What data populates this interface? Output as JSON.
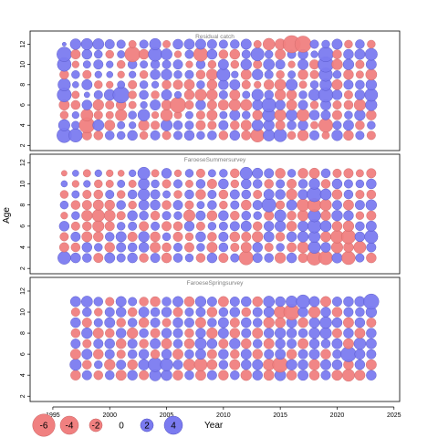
{
  "chart_data": {
    "type": "scatter",
    "subtype": "bubble-residuals",
    "ylabel": "Age",
    "xlabel": "Year",
    "x_ticks": [
      1995,
      2000,
      2005,
      2010,
      2015,
      2020,
      2025
    ],
    "xlim": [
      1993,
      2025.5
    ],
    "colors": {
      "negative": "#F08080",
      "positive": "#7B7BF0",
      "stroke": "#5a5a8a"
    },
    "legend": {
      "values": [
        -6,
        -4,
        -2,
        0,
        2,
        4
      ],
      "labels": [
        "-6",
        "-4",
        "-2",
        "0",
        "2",
        "4"
      ]
    },
    "panels": [
      {
        "title": "Residual catch",
        "y_ticks": [
          2,
          4,
          6,
          8,
          10,
          12
        ],
        "ylim": [
          1.5,
          13.3
        ],
        "years": [
          1996,
          1997,
          1998,
          1999,
          2000,
          2001,
          2002,
          2003,
          2004,
          2005,
          2006,
          2007,
          2008,
          2009,
          2010,
          2011,
          2012,
          2013,
          2014,
          2015,
          2016,
          2017,
          2018,
          2019,
          2020,
          2021,
          2022,
          2023
        ],
        "ages": [
          3,
          4,
          5,
          6,
          7,
          8,
          9,
          10,
          11,
          12
        ],
        "residuals": [
          [
            2.6,
            1.6,
            -0.8,
            -1.3,
            2.4,
            1.9,
            -1.0,
            2.3,
            2.6,
            0.2
          ],
          [
            2.2,
            0.8,
            0.6,
            -1.0,
            -0.7,
            0.5,
            0.8,
            -0.6,
            -1.1,
            1.4
          ],
          [
            -1.1,
            -2.9,
            -1.8,
            1.2,
            0.4,
            1.3,
            -0.9,
            0.7,
            1.2,
            1.6
          ],
          [
            -1.0,
            1.5,
            -0.9,
            -1.4,
            0.9,
            -0.8,
            0.6,
            1.1,
            0.8,
            1.5
          ],
          [
            1.0,
            -1.3,
            -0.7,
            -0.9,
            1.5,
            -0.6,
            0.5,
            0.6,
            -0.8,
            1.1
          ],
          [
            0.8,
            0.7,
            -1.6,
            -1.2,
            3.2,
            0.7,
            -0.6,
            -0.8,
            0.7,
            0.9
          ],
          [
            1.2,
            0.6,
            0.8,
            -0.7,
            -0.8,
            -0.9,
            0.6,
            1.0,
            -2.8,
            -0.7
          ],
          [
            -0.8,
            -1.4,
            1.7,
            0.6,
            1.0,
            0.8,
            -0.8,
            0.7,
            -1.2,
            0.9
          ],
          [
            1.1,
            -0.9,
            -0.6,
            1.3,
            -0.8,
            0.6,
            1.2,
            1.0,
            2.3,
            1.6
          ],
          [
            -0.9,
            1.6,
            -1.7,
            -1.2,
            1.3,
            -1.0,
            1.4,
            0.9,
            1.5,
            -0.7
          ],
          [
            0.9,
            1.0,
            -0.7,
            -2.9,
            0.6,
            -1.1,
            0.8,
            1.1,
            -0.6,
            1.2
          ],
          [
            1.2,
            0.9,
            0.7,
            -0.9,
            -1.2,
            -1.3,
            0.9,
            -0.6,
            0.9,
            1.3
          ],
          [
            0.8,
            -1.1,
            -0.9,
            1.2,
            -1.6,
            0.8,
            -1.0,
            1.0,
            -2.4,
            1.3
          ],
          [
            1.0,
            -0.9,
            -1.3,
            -1.1,
            -1.4,
            -1.2,
            -1.5,
            -0.8,
            1.2,
            1.1
          ],
          [
            -1.0,
            1.1,
            0.7,
            -1.3,
            0.9,
            1.2,
            2.1,
            1.3,
            -1.0,
            0.9
          ],
          [
            1.2,
            -1.0,
            1.3,
            -1.6,
            -1.3,
            1.3,
            0.6,
            -0.8,
            -1.2,
            1.0
          ],
          [
            -1.1,
            -1.3,
            0.8,
            -1.5,
            0.7,
            -0.9,
            -1.3,
            1.4,
            0.9,
            1.3
          ],
          [
            -2.2,
            1.5,
            -1.2,
            1.3,
            1.6,
            -0.6,
            1.4,
            -0.9,
            2.1,
            -0.7
          ],
          [
            1.6,
            1.4,
            2.0,
            2.4,
            1.0,
            -1.2,
            0.9,
            1.5,
            0.8,
            -1.7
          ],
          [
            2.0,
            -1.1,
            -1.6,
            1.2,
            -1.4,
            -1.5,
            -0.8,
            1.1,
            -1.3,
            -1.4
          ],
          [
            -0.8,
            1.0,
            1.5,
            -1.3,
            -1.2,
            1.6,
            0.7,
            -0.6,
            0.9,
            -3.6
          ],
          [
            -1.4,
            1.2,
            -1.8,
            1.1,
            0.8,
            -0.7,
            -1.2,
            1.3,
            1.2,
            -3.2
          ],
          [
            1.1,
            -0.7,
            1.2,
            -0.8,
            1.6,
            0.8,
            -0.9,
            -1.1,
            0.6,
            0.9
          ],
          [
            -0.7,
            -2.4,
            1.1,
            1.3,
            2.6,
            1.7,
            2.2,
            2.9,
            2.7,
            0.8
          ],
          [
            1.4,
            0.9,
            -1.1,
            -0.9,
            1.2,
            -1.3,
            0.8,
            -1.4,
            -1.0,
            1.3
          ],
          [
            -1.2,
            1.3,
            0.8,
            -1.0,
            -0.9,
            1.1,
            -1.2,
            1.4,
            1.2,
            -0.8
          ],
          [
            0.9,
            -1.0,
            1.4,
            -1.6,
            1.2,
            1.0,
            -0.7,
            -0.9,
            1.3,
            1.0
          ],
          [
            -0.9,
            0.8,
            -1.2,
            1.6,
            2.0,
            1.4,
            -1.5,
            1.3,
            1.8,
            -0.8
          ]
        ]
      },
      {
        "title": "FaroeseSummersurvey",
        "y_ticks": [
          2,
          4,
          6,
          8,
          10,
          12
        ],
        "ylim": [
          1.5,
          12.8
        ],
        "years": [
          1996,
          1997,
          1998,
          1999,
          2000,
          2001,
          2002,
          2003,
          2004,
          2005,
          2006,
          2007,
          2008,
          2009,
          2010,
          2011,
          2012,
          2013,
          2014,
          2015,
          2016,
          2017,
          2018,
          2019,
          2020,
          2021,
          2022,
          2023
        ],
        "ages": [
          3,
          4,
          5,
          6,
          7,
          8,
          9,
          10,
          11
        ],
        "residuals": [
          [
            2.0,
            -1.1,
            -0.9,
            1.2,
            -0.6,
            0.8,
            -0.8,
            0.5,
            -0.4
          ],
          [
            1.2,
            -1.0,
            1.1,
            -0.9,
            0.8,
            -1.0,
            0.7,
            -0.6,
            0.5
          ],
          [
            1.0,
            1.2,
            -1.3,
            -1.0,
            -1.4,
            -1.1,
            -0.9,
            0.6,
            -0.7
          ],
          [
            -1.1,
            0.8,
            -1.2,
            -1.6,
            -1.8,
            -1.3,
            -1.0,
            -0.8,
            0.6
          ],
          [
            1.3,
            -1.2,
            1.0,
            -1.1,
            -1.5,
            -1.2,
            0.9,
            -0.7,
            -0.6
          ],
          [
            0.9,
            1.1,
            1.3,
            0.8,
            -0.9,
            1.0,
            -0.8,
            0.7,
            -0.5
          ],
          [
            1.2,
            1.0,
            -1.1,
            0.9,
            1.2,
            -0.8,
            1.0,
            -0.7,
            0.6
          ],
          [
            -1.0,
            1.2,
            1.4,
            -1.1,
            1.0,
            1.3,
            1.6,
            1.5,
            1.8
          ],
          [
            1.1,
            -1.3,
            -1.2,
            0.9,
            -1.0,
            1.2,
            1.1,
            0.8,
            -0.7
          ],
          [
            -1.2,
            -1.0,
            0.8,
            -1.1,
            0.9,
            -1.0,
            0.7,
            -0.9,
            1.2
          ],
          [
            1.0,
            0.9,
            -1.1,
            -1.0,
            0.8,
            1.1,
            -0.8,
            0.9,
            -0.6
          ],
          [
            0.8,
            -1.1,
            -0.8,
            1.2,
            -1.6,
            -0.9,
            1.0,
            -0.7,
            0.8
          ],
          [
            -1.0,
            0.8,
            1.2,
            -0.9,
            1.1,
            0.7,
            -1.2,
            1.0,
            -0.9
          ],
          [
            1.2,
            -1.3,
            -1.0,
            0.8,
            -1.2,
            1.0,
            0.9,
            -1.1,
            0.7
          ],
          [
            -1.1,
            1.0,
            1.1,
            0.9,
            1.2,
            -0.8,
            -1.0,
            1.2,
            0.8
          ],
          [
            0.9,
            -0.9,
            -1.2,
            1.1,
            -1.0,
            0.9,
            1.1,
            -0.8,
            -1.0
          ],
          [
            -2.4,
            -1.3,
            -1.1,
            1.3,
            1.0,
            -1.2,
            1.0,
            1.2,
            1.8
          ],
          [
            1.1,
            1.2,
            -1.4,
            -1.0,
            0.8,
            1.1,
            -0.9,
            1.0,
            1.3
          ],
          [
            1.0,
            -0.9,
            1.3,
            1.2,
            -1.1,
            2.4,
            1.3,
            -1.0,
            1.1
          ],
          [
            -1.4,
            0.8,
            -1.0,
            1.4,
            1.6,
            -0.9,
            1.2,
            0.9,
            -1.2
          ],
          [
            1.2,
            -1.1,
            1.2,
            -1.2,
            -1.0,
            1.3,
            -1.4,
            -1.1,
            0.8
          ],
          [
            -1.1,
            -1.5,
            1.4,
            1.3,
            -1.4,
            -1.8,
            1.2,
            1.0,
            -1.2
          ],
          [
            -2.6,
            1.8,
            1.6,
            2.2,
            1.9,
            -2.2,
            2.6,
            1.4,
            -1.3
          ],
          [
            -2.3,
            1.2,
            -1.3,
            1.5,
            -1.2,
            -1.6,
            1.5,
            -1.0,
            1.0
          ],
          [
            1.3,
            -1.6,
            -2.0,
            -1.2,
            1.4,
            1.1,
            -1.2,
            1.2,
            -0.9
          ],
          [
            -2.2,
            -1.2,
            -2.4,
            -1.4,
            1.2,
            -1.3,
            1.0,
            0.9,
            -1.1
          ],
          [
            0.9,
            -1.8,
            1.2,
            1.0,
            -0.8,
            1.1,
            -0.9,
            0.8,
            -0.7
          ],
          [
            -1.2,
            1.1,
            2.1,
            1.3,
            -1.1,
            1.4,
            -1.0,
            1.2,
            -1.1
          ]
        ]
      },
      {
        "title": "FaroeseSpringsurvey",
        "y_ticks": [
          2,
          4,
          6,
          8,
          10,
          12
        ],
        "ylim": [
          1.5,
          13.3
        ],
        "years": [
          1997,
          1998,
          1999,
          2000,
          2001,
          2002,
          2003,
          2004,
          2005,
          2006,
          2007,
          2008,
          2009,
          2010,
          2011,
          2012,
          2013,
          2014,
          2015,
          2016,
          2017,
          2018,
          2019,
          2020,
          2021,
          2022,
          2023
        ],
        "ages": [
          4,
          5,
          6,
          7,
          8,
          9,
          10,
          11
        ],
        "residuals": [
          [
            -1.2,
            1.6,
            -1.3,
            1.1,
            -1.0,
            1.2,
            -0.9,
            1.3
          ],
          [
            1.1,
            -1.0,
            1.3,
            -0.9,
            1.4,
            -1.1,
            1.0,
            1.5
          ],
          [
            -1.0,
            0.8,
            -1.2,
            1.1,
            -1.3,
            0.9,
            -0.8,
            1.0
          ],
          [
            1.0,
            -1.4,
            1.1,
            1.2,
            -1.0,
            1.3,
            1.1,
            -0.9
          ],
          [
            -1.3,
            1.1,
            -0.9,
            -1.2,
            1.2,
            -1.0,
            1.2,
            1.3
          ],
          [
            1.2,
            -1.2,
            1.0,
            1.1,
            -1.4,
            1.0,
            -1.0,
            0.9
          ],
          [
            -1.1,
            1.4,
            1.2,
            -1.0,
            1.0,
            -1.2,
            1.3,
            -1.0
          ],
          [
            1.6,
            2.4,
            -1.0,
            1.3,
            -1.1,
            1.1,
            1.0,
            -1.2
          ],
          [
            1.4,
            1.9,
            1.2,
            -1.3,
            1.2,
            -0.9,
            1.2,
            1.0
          ],
          [
            -1.2,
            1.1,
            -1.3,
            1.0,
            1.1,
            1.2,
            -1.1,
            1.3
          ],
          [
            1.0,
            -1.6,
            1.0,
            -1.2,
            -1.0,
            1.1,
            0.9,
            -1.2
          ],
          [
            -1.3,
            -2.0,
            1.3,
            1.6,
            1.2,
            -1.3,
            1.1,
            1.4
          ],
          [
            1.1,
            -1.2,
            -1.1,
            1.2,
            -1.4,
            1.0,
            -1.2,
            1.1
          ],
          [
            -1.2,
            1.0,
            1.2,
            -1.1,
            1.3,
            1.3,
            1.0,
            -1.3
          ],
          [
            1.0,
            -1.3,
            -1.0,
            1.4,
            -1.2,
            -1.1,
            1.2,
            1.1
          ],
          [
            -1.4,
            1.2,
            1.3,
            -1.2,
            1.1,
            1.2,
            -1.0,
            1.2
          ],
          [
            1.2,
            1.3,
            -1.2,
            1.0,
            -1.3,
            1.0,
            1.1,
            -1.2
          ],
          [
            -1.3,
            -1.6,
            1.1,
            -1.3,
            1.2,
            -1.4,
            1.3,
            1.5
          ],
          [
            1.5,
            -2.8,
            1.3,
            1.2,
            1.4,
            -1.3,
            -1.8,
            1.2
          ],
          [
            -1.2,
            1.4,
            -1.2,
            1.1,
            1.2,
            1.3,
            -3.0,
            1.6
          ],
          [
            1.3,
            1.2,
            1.1,
            -1.3,
            1.0,
            -1.2,
            1.2,
            2.2
          ],
          [
            -1.2,
            -1.4,
            1.3,
            1.2,
            1.4,
            1.3,
            -1.6,
            1.3
          ],
          [
            1.1,
            1.3,
            -1.2,
            1.0,
            1.6,
            1.7,
            1.2,
            -1.3
          ],
          [
            -1.3,
            1.2,
            1.0,
            1.3,
            -1.1,
            1.2,
            -1.2,
            1.1
          ],
          [
            -1.8,
            -1.2,
            2.8,
            -1.3,
            1.2,
            -1.3,
            1.1,
            1.2
          ],
          [
            -1.3,
            1.2,
            1.3,
            1.7,
            -1.3,
            1.2,
            1.0,
            1.3
          ],
          [
            1.2,
            -1.3,
            1.1,
            1.3,
            1.2,
            -1.1,
            1.4,
            2.8
          ]
        ]
      }
    ]
  }
}
